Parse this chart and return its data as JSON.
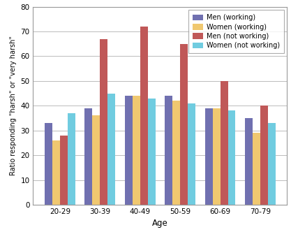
{
  "categories": [
    "20-29",
    "30-39",
    "40-49",
    "50-59",
    "60-69",
    "70-79"
  ],
  "series": {
    "Men (working)": [
      33,
      39,
      44,
      44,
      39,
      35
    ],
    "Women (working)": [
      26,
      36,
      44,
      42,
      39,
      29
    ],
    "Men (not working)": [
      28,
      67,
      72,
      65,
      50,
      40
    ],
    "Women (not working)": [
      37,
      45,
      43,
      41,
      38,
      33
    ]
  },
  "colors": {
    "Men (working)": "#7070b0",
    "Women (working)": "#f0c870",
    "Men (not working)": "#c05858",
    "Women (not working)": "#70cce0"
  },
  "xlabel": "Age",
  "ylabel": "Ratio responding \"harsh\" or \"very harsh\"",
  "ylim": [
    0,
    80
  ],
  "yticks": [
    0,
    10,
    20,
    30,
    40,
    50,
    60,
    70,
    80
  ],
  "legend_order": [
    "Men (working)",
    "Women (working)",
    "Men (not working)",
    "Women (not working)"
  ],
  "bar_width": 0.19,
  "background_color": "#ffffff",
  "grid_color": "#bbbbbb",
  "spine_color": "#999999",
  "tick_label_size": 7.5,
  "xlabel_size": 8.5,
  "ylabel_size": 7.0,
  "legend_fontsize": 7.0
}
